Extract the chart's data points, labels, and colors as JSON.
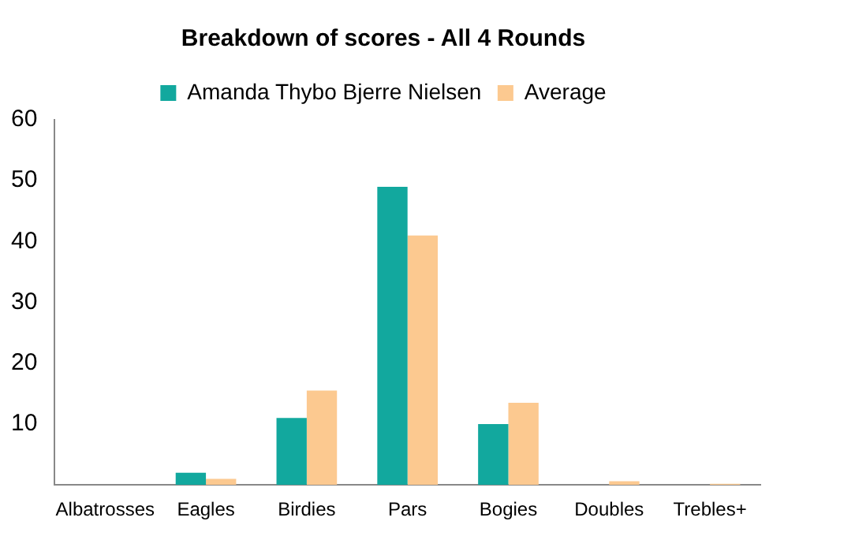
{
  "chart_data": {
    "type": "bar",
    "title": "Breakdown of scores - All 4 Rounds",
    "categories": [
      "Albatrosses",
      "Eagles",
      "Birdies",
      "Pars",
      "Bogies",
      "Doubles",
      "Trebles+"
    ],
    "series": [
      {
        "name": "Amanda Thybo Bjerre Nielsen",
        "color": "#12a89e",
        "values": [
          0,
          2,
          11,
          49,
          10,
          0,
          0
        ]
      },
      {
        "name": "Average",
        "color": "#fcc990",
        "values": [
          0,
          1,
          15.5,
          41,
          13.5,
          0.6,
          0.2
        ]
      }
    ],
    "ylim": [
      0,
      60
    ],
    "yticks": [
      10,
      20,
      30,
      40,
      50,
      60
    ],
    "grid": false,
    "legend": "top"
  }
}
